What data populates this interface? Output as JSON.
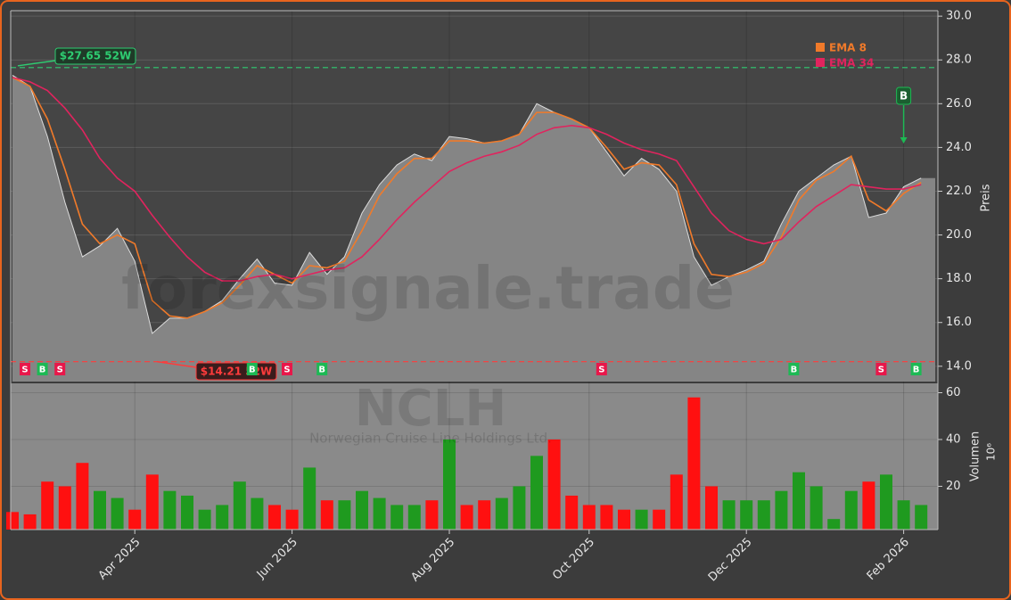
{
  "chart_data": {
    "type": "line",
    "categories": [
      null,
      null,
      null,
      null,
      null,
      null,
      null,
      "Apr 2025",
      null,
      null,
      null,
      null,
      null,
      null,
      null,
      null,
      "Jun 2025",
      null,
      null,
      null,
      null,
      null,
      null,
      null,
      null,
      "Aug 2025",
      null,
      null,
      null,
      null,
      null,
      null,
      null,
      "Oct 2025",
      null,
      null,
      null,
      null,
      null,
      null,
      null,
      null,
      "Dec 2025",
      null,
      null,
      null,
      null,
      null,
      null,
      null,
      null,
      "Feb 2026",
      null
    ],
    "price": {
      "color": "#dcdcdc",
      "area_color": "#858585",
      "values": [
        27.3,
        26.8,
        24.5,
        21.5,
        19.0,
        19.5,
        20.3,
        18.8,
        15.5,
        16.2,
        16.2,
        16.5,
        17.0,
        18.0,
        18.9,
        17.8,
        17.7,
        19.2,
        18.2,
        19.0,
        21.0,
        22.3,
        23.2,
        23.7,
        23.4,
        24.5,
        24.4,
        24.2,
        24.3,
        24.6,
        26.0,
        25.6,
        25.3,
        24.9,
        23.8,
        22.7,
        23.5,
        23.0,
        22.0,
        19.0,
        17.7,
        18.1,
        18.4,
        18.8,
        20.5,
        22.0,
        22.6,
        23.2,
        23.6,
        20.8,
        21.0,
        22.2,
        22.6
      ]
    },
    "series": [
      {
        "name": "EMA 8",
        "color": "#f07a2a",
        "values": [
          27.2,
          26.8,
          25.3,
          23.0,
          20.5,
          19.6,
          20.0,
          19.6,
          17.0,
          16.3,
          16.2,
          16.5,
          16.9,
          17.7,
          18.6,
          18.2,
          17.8,
          18.6,
          18.5,
          18.8,
          20.2,
          21.8,
          22.8,
          23.5,
          23.5,
          24.3,
          24.3,
          24.2,
          24.3,
          24.6,
          25.6,
          25.6,
          25.3,
          24.9,
          24.0,
          23.0,
          23.3,
          23.2,
          22.3,
          19.6,
          18.2,
          18.1,
          18.3,
          18.7,
          19.9,
          21.6,
          22.5,
          22.9,
          23.6,
          21.6,
          21.1,
          21.9,
          22.4
        ]
      },
      {
        "name": "EMA 34",
        "color": "#e0245e",
        "values": [
          27.2,
          27.0,
          26.6,
          25.8,
          24.8,
          23.5,
          22.6,
          22.0,
          20.9,
          19.9,
          19.0,
          18.3,
          17.9,
          17.9,
          18.1,
          18.2,
          18.0,
          18.2,
          18.4,
          18.5,
          19.0,
          19.8,
          20.7,
          21.5,
          22.2,
          22.9,
          23.3,
          23.6,
          23.8,
          24.1,
          24.6,
          24.9,
          25.0,
          24.9,
          24.6,
          24.2,
          23.9,
          23.7,
          23.4,
          22.2,
          21.0,
          20.2,
          19.8,
          19.6,
          19.8,
          20.6,
          21.3,
          21.8,
          22.3,
          22.2,
          22.1,
          22.1,
          22.3
        ]
      }
    ],
    "ylabel": "Preis",
    "ylim": [
      13.3,
      30.25
    ],
    "yticks": [
      {
        "value": 14,
        "label": "14.0"
      },
      {
        "value": 16,
        "label": "16.0"
      },
      {
        "value": 18,
        "label": "18.0"
      },
      {
        "value": 20,
        "label": "20.0"
      },
      {
        "value": 22,
        "label": "22.0"
      },
      {
        "value": 24,
        "label": "24.0"
      },
      {
        "value": 26,
        "label": "26.0"
      },
      {
        "value": 28,
        "label": "28.0"
      },
      {
        "value": 30,
        "label": "30.0"
      }
    ],
    "grid": true,
    "high": {
      "value": 27.65,
      "label": "$27.65 52W",
      "color": "#2ecc71"
    },
    "low": {
      "value": 14.21,
      "label": "$14.21 52W",
      "color": "#ff3b3b"
    },
    "signals": [
      {
        "x": 0,
        "label": "S"
      },
      {
        "x": 1,
        "label": "B"
      },
      {
        "x": 2,
        "label": "S"
      },
      {
        "x": 13,
        "label": "B"
      },
      {
        "x": 15,
        "label": "S"
      },
      {
        "x": 17,
        "label": "B"
      },
      {
        "x": 33,
        "label": "S"
      },
      {
        "x": 44,
        "label": "B"
      },
      {
        "x": 49,
        "label": "S"
      },
      {
        "x": 51,
        "label": "B"
      }
    ],
    "latest_signal": {
      "x": 51,
      "label": "B"
    },
    "volume": {
      "ylabel": "Volumen",
      "unit": "10⁶",
      "up_color": "#1f9a1f",
      "down_color": "#ff1010",
      "values": [
        9,
        8,
        22,
        20,
        30,
        18,
        15,
        10,
        25,
        18,
        16,
        10,
        12,
        22,
        15,
        12,
        10,
        28,
        14,
        14,
        18,
        15,
        12,
        12,
        14,
        40,
        12,
        14,
        15,
        20,
        33,
        40,
        16,
        12,
        12,
        10,
        10,
        10,
        25,
        58,
        20,
        14,
        14,
        14,
        18,
        26,
        20,
        6,
        18,
        22,
        25,
        14,
        12
      ],
      "ylim": [
        1.5,
        64
      ],
      "yticks": [
        20,
        40,
        60
      ]
    },
    "watermark": "forexsignale.trade",
    "ticker": "NCLH",
    "company": "Norwegian Cruise Line Holdings Ltd."
  }
}
